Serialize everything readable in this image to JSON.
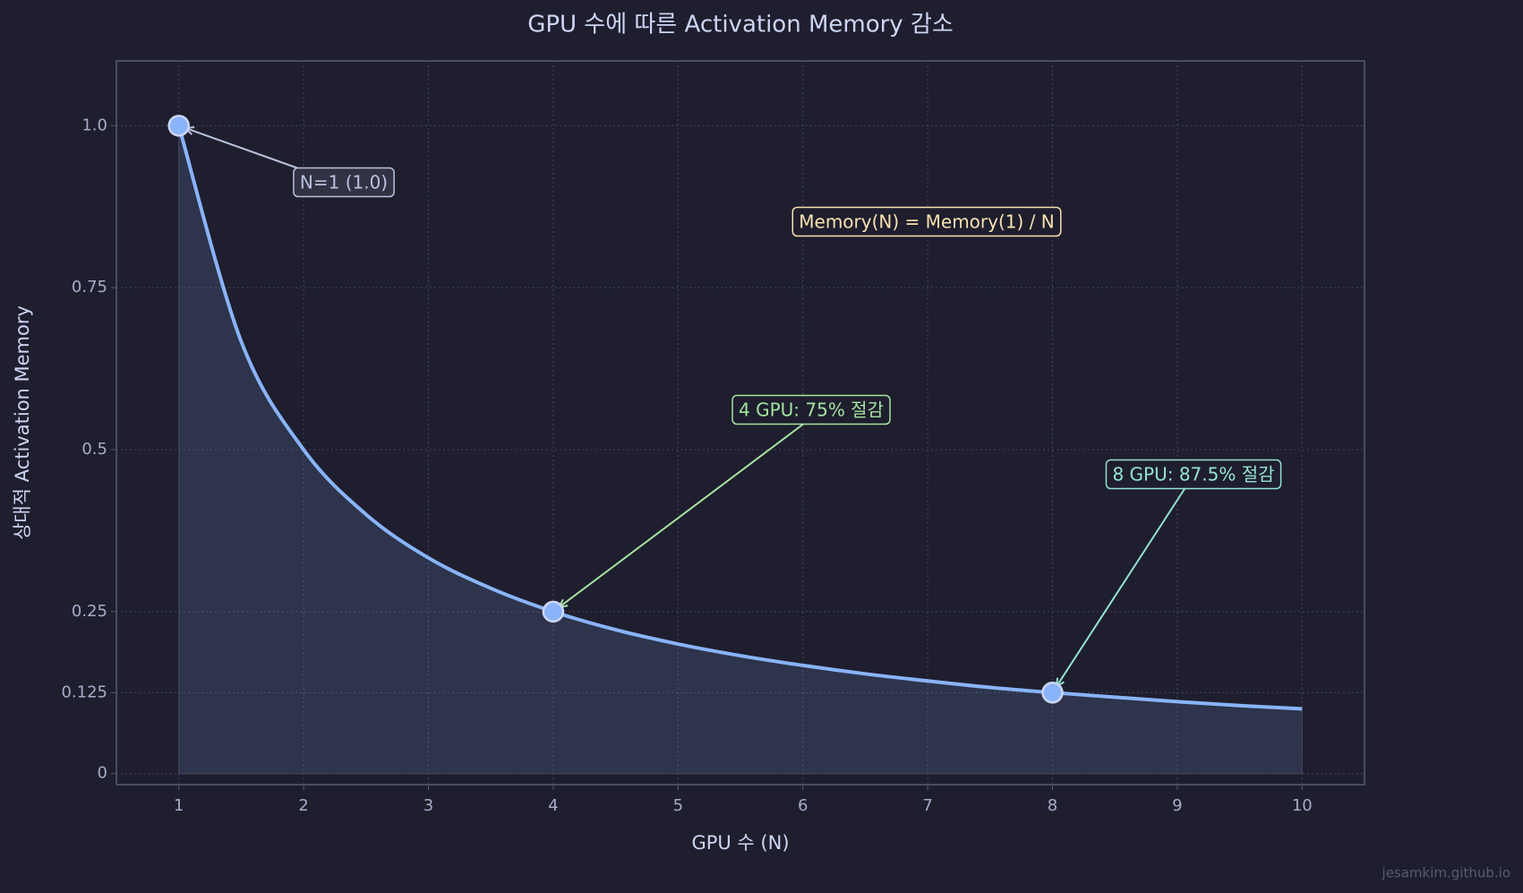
{
  "chart_data": {
    "type": "line",
    "title": "GPU 수에 따른 Activation Memory 감소",
    "xlabel": "GPU 수 (N)",
    "ylabel": "상대적 Activation Memory",
    "x": [
      1,
      1.5,
      2,
      2.5,
      3,
      3.5,
      4,
      4.5,
      5,
      5.5,
      6,
      6.5,
      7,
      7.5,
      8,
      8.5,
      9,
      9.5,
      10
    ],
    "values": [
      1,
      0.667,
      0.5,
      0.4,
      0.333,
      0.286,
      0.25,
      0.222,
      0.2,
      0.182,
      0.167,
      0.154,
      0.143,
      0.133,
      0.125,
      0.118,
      0.111,
      0.105,
      0.1
    ],
    "color": "#89b4fa",
    "highlight": {
      "x": [
        1,
        4,
        8
      ],
      "values": [
        1,
        0.25,
        0.125
      ]
    },
    "annotations": [
      {
        "text": "N=1 (1.0)",
        "color": "#bac2de"
      },
      {
        "text": "4 GPU: 75% 절감",
        "color": "#a6e3a1"
      },
      {
        "text": "8 GPU: 87.5% 절감",
        "color": "#94e2d5"
      }
    ],
    "formula": {
      "text": "Memory(N) = Memory(1) / N",
      "color": "#f9e2af"
    },
    "xlim": [
      0.5,
      10.5
    ],
    "ylim": [
      -0.017,
      1.1
    ],
    "xticks": [
      1,
      2,
      3,
      4,
      5,
      6,
      7,
      8,
      9,
      10
    ],
    "yticks": [
      0,
      0.125,
      0.25,
      0.5,
      0.75,
      {
        "value": 1,
        "label": "1.0"
      }
    ],
    "grid": true,
    "watermark": "jesamkim.github.io"
  }
}
